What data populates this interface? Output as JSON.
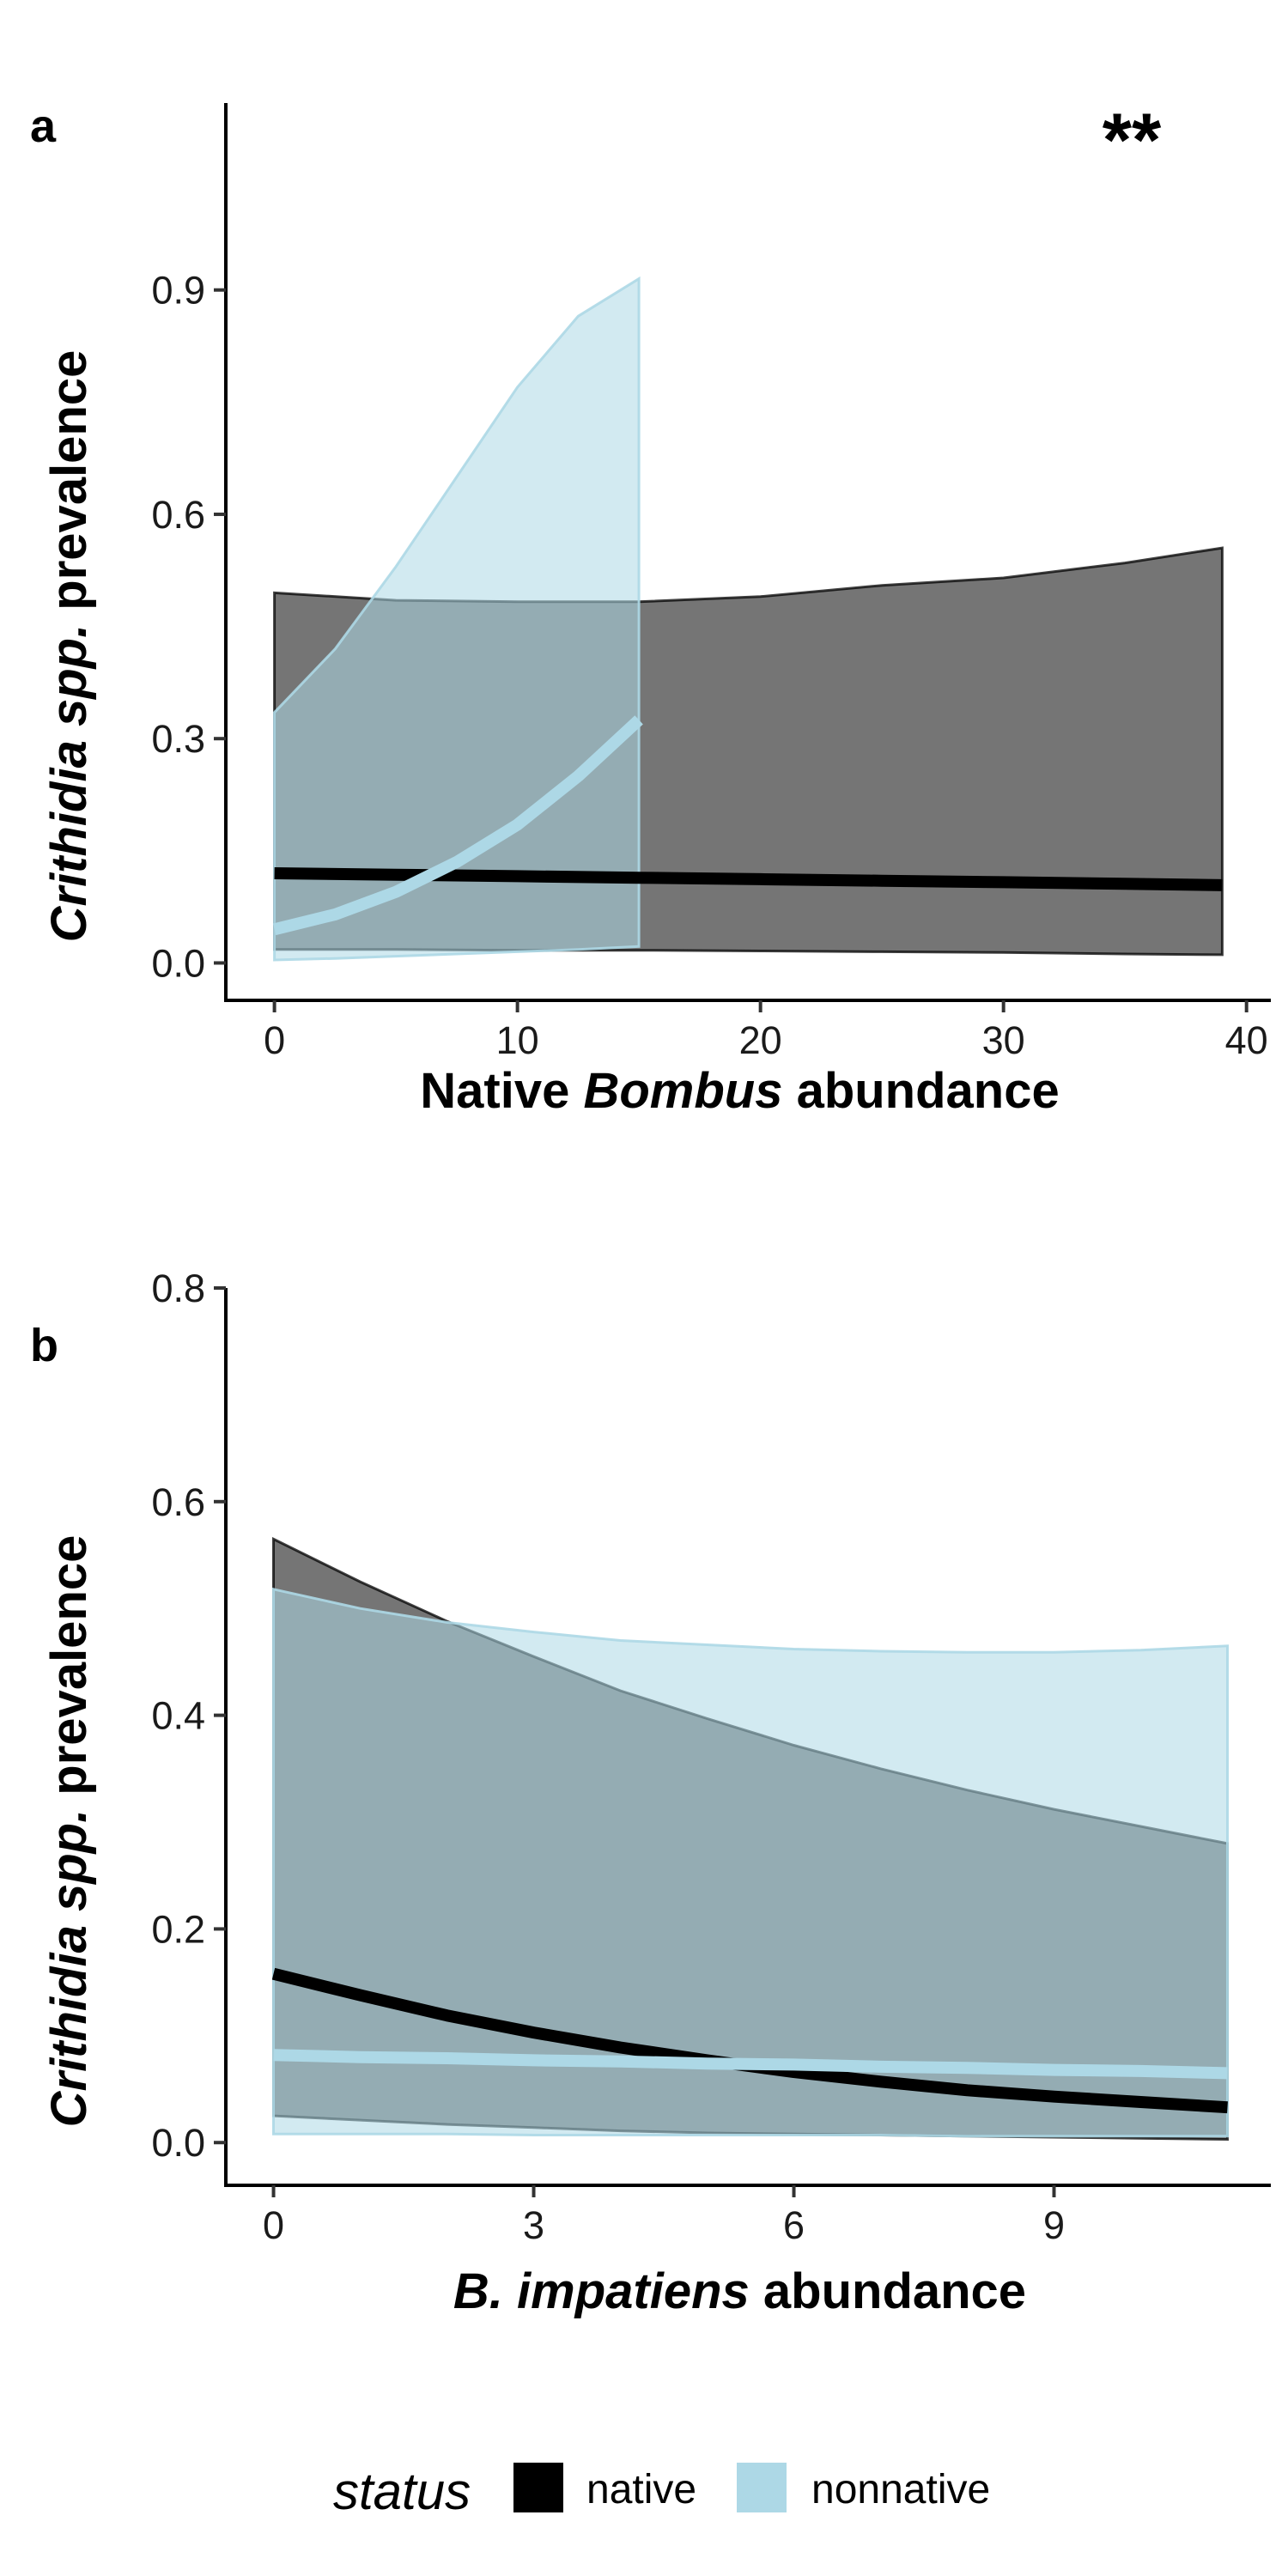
{
  "colors": {
    "native_fill": "#333333",
    "native_fill_opacity": 0.68,
    "native_line": "#000000",
    "nonnative_fill": "#add8e6",
    "nonnative_fill_opacity": 0.55,
    "nonnative_line": "#add8e6"
  },
  "legend": {
    "title": "status",
    "items": [
      {
        "label": "native",
        "color": "#000000"
      },
      {
        "label": "nonnative",
        "color": "#add8e6"
      }
    ]
  },
  "chart_data": [
    {
      "type": "line",
      "panel_label": "a",
      "significance": "**",
      "xlabel_parts": [
        "Native ",
        "Bombus",
        " abundance"
      ],
      "ylabel_parts": [
        "Crithidia spp.",
        " prevalence"
      ],
      "xlim": [
        -2,
        41
      ],
      "ylim": [
        -0.05,
        1.15
      ],
      "xticks": [
        0,
        10,
        20,
        30,
        40
      ],
      "xtick_labels": [
        "0",
        "10",
        "20",
        "30",
        "40"
      ],
      "yticks": [
        0.0,
        0.3,
        0.6,
        0.9
      ],
      "ytick_labels": [
        "0.0",
        "0.3",
        "0.6",
        "0.9"
      ],
      "series": [
        {
          "name": "native",
          "x": [
            0,
            5,
            10,
            15,
            20,
            25,
            30,
            35,
            39
          ],
          "fit": [
            0.12,
            0.118,
            0.116,
            0.114,
            0.112,
            0.11,
            0.108,
            0.106,
            0.104
          ],
          "lower": [
            0.018,
            0.018,
            0.017,
            0.017,
            0.016,
            0.015,
            0.014,
            0.012,
            0.011
          ],
          "upper": [
            0.495,
            0.485,
            0.483,
            0.483,
            0.49,
            0.505,
            0.515,
            0.535,
            0.555
          ]
        },
        {
          "name": "nonnative",
          "x": [
            0,
            2.5,
            5,
            7.5,
            10,
            12.5,
            15
          ],
          "fit": [
            0.045,
            0.065,
            0.095,
            0.135,
            0.185,
            0.25,
            0.325
          ],
          "lower": [
            0.004,
            0.006,
            0.009,
            0.012,
            0.015,
            0.018,
            0.022
          ],
          "upper": [
            0.335,
            0.42,
            0.53,
            0.65,
            0.77,
            0.865,
            0.915
          ]
        }
      ]
    },
    {
      "type": "line",
      "panel_label": "b",
      "xlabel_parts": [
        "B. impatiens",
        " abundance"
      ],
      "ylabel_parts": [
        "Crithidia spp.",
        " prevalence"
      ],
      "xlim": [
        -0.55,
        11.5
      ],
      "ylim": [
        -0.04,
        0.8
      ],
      "xticks": [
        0,
        3,
        6,
        9
      ],
      "xtick_labels": [
        "0",
        "3",
        "6",
        "9"
      ],
      "yticks": [
        0.0,
        0.2,
        0.4,
        0.6,
        0.8
      ],
      "ytick_labels": [
        "0.0",
        "0.2",
        "0.4",
        "0.6",
        "0.8"
      ],
      "series": [
        {
          "name": "native",
          "x": [
            0,
            1,
            2,
            3,
            4,
            5,
            6,
            7,
            8,
            9,
            10,
            11
          ],
          "fit": [
            0.158,
            0.138,
            0.119,
            0.103,
            0.089,
            0.077,
            0.066,
            0.057,
            0.049,
            0.043,
            0.038,
            0.033
          ],
          "lower": [
            0.025,
            0.021,
            0.017,
            0.014,
            0.011,
            0.009,
            0.008,
            0.007,
            0.006,
            0.005,
            0.004,
            0.003
          ],
          "upper": [
            0.565,
            0.525,
            0.488,
            0.455,
            0.423,
            0.397,
            0.372,
            0.35,
            0.33,
            0.312,
            0.296,
            0.28
          ]
        },
        {
          "name": "nonnative",
          "x": [
            0,
            1,
            2,
            3,
            4,
            5,
            6,
            7,
            8,
            9,
            10,
            11
          ],
          "fit": [
            0.082,
            0.08,
            0.079,
            0.077,
            0.076,
            0.074,
            0.073,
            0.071,
            0.07,
            0.068,
            0.067,
            0.065
          ],
          "lower": [
            0.008,
            0.008,
            0.008,
            0.007,
            0.007,
            0.007,
            0.007,
            0.007,
            0.006,
            0.006,
            0.006,
            0.006
          ],
          "upper": [
            0.518,
            0.5,
            0.487,
            0.478,
            0.47,
            0.466,
            0.462,
            0.46,
            0.459,
            0.459,
            0.461,
            0.465
          ]
        }
      ]
    }
  ]
}
